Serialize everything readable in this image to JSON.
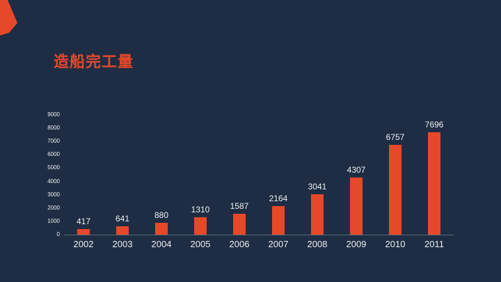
{
  "slide": {
    "title": "造船完工量"
  },
  "colors": {
    "background": "#1e2d43",
    "accent": "#e8482a",
    "label": "#edf0f4",
    "axis": "#5c6878"
  },
  "chart_data": {
    "type": "bar",
    "title": "造船完工量",
    "categories": [
      "2002",
      "2003",
      "2004",
      "2005",
      "2006",
      "2007",
      "2008",
      "2009",
      "2010",
      "2011"
    ],
    "values": [
      417,
      641,
      880,
      1310,
      1587,
      2164,
      3041,
      4307,
      6757,
      7696
    ],
    "xlabel": "",
    "ylabel": "",
    "ylim": [
      0,
      9000
    ],
    "y_ticks": [
      9000,
      8000,
      7000,
      6000,
      5000,
      4000,
      3000,
      2000,
      1000,
      0
    ],
    "grid": false,
    "legend": "none",
    "data_labels": true
  }
}
